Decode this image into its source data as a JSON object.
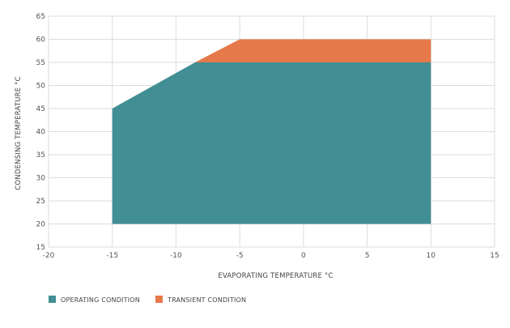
{
  "chart_data": {
    "type": "area",
    "xlabel": "EVAPORATING TEMPERATURE °C",
    "ylabel": "CONDENSING TEMPERATURE °C",
    "xlim": [
      -20,
      15
    ],
    "ylim": [
      15,
      65
    ],
    "xticks": [
      -20,
      -15,
      -10,
      -5,
      0,
      5,
      10,
      15
    ],
    "yticks": [
      15,
      20,
      25,
      30,
      35,
      40,
      45,
      50,
      55,
      60,
      65
    ],
    "grid": true,
    "legend_position": "bottom-left",
    "series": [
      {
        "name": "OPERATING CONDITION",
        "color": "#418f95",
        "points": [
          [
            -15,
            20
          ],
          [
            -15,
            45
          ],
          [
            -8.5,
            55
          ],
          [
            10,
            55
          ],
          [
            10,
            20
          ]
        ]
      },
      {
        "name": "TRANSIENT CONDITION",
        "color": "#e5794a",
        "points": [
          [
            -8.5,
            55
          ],
          [
            -5,
            60
          ],
          [
            10,
            60
          ],
          [
            10,
            55
          ]
        ]
      }
    ]
  }
}
